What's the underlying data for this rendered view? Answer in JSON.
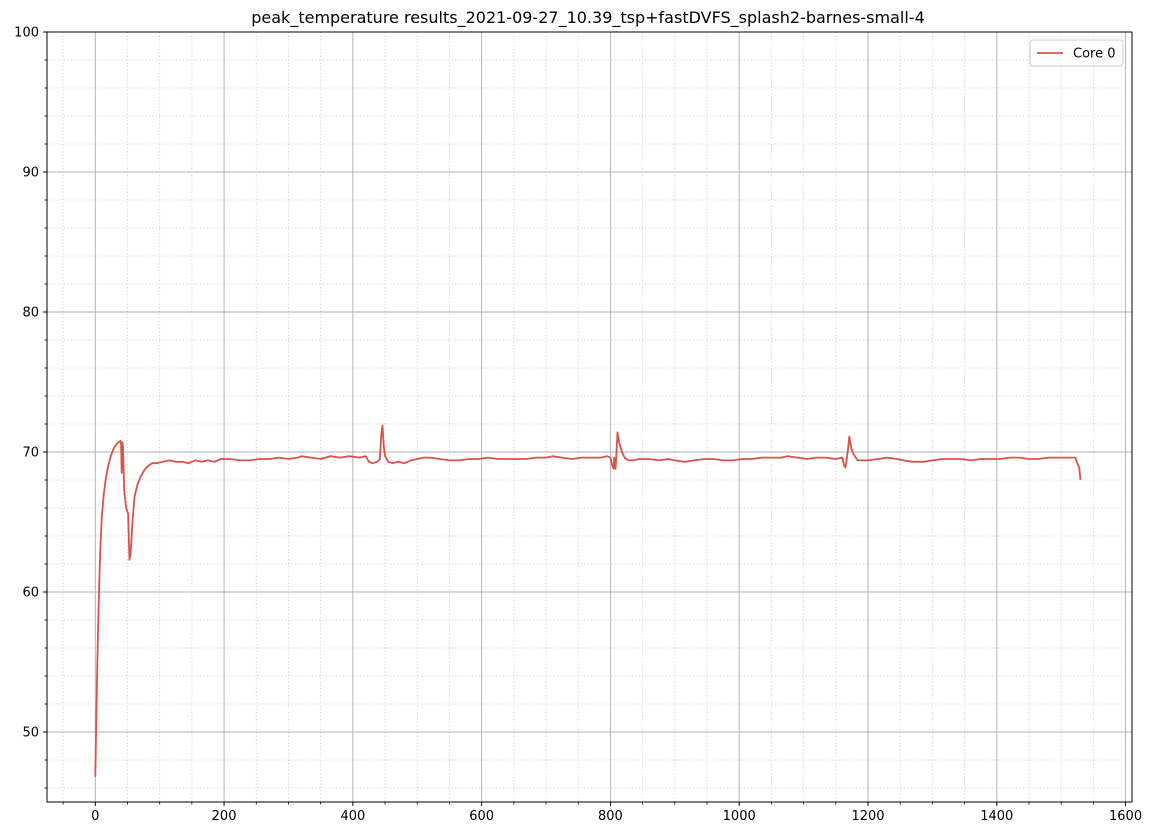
{
  "chart_data": {
    "type": "line",
    "title": "peak_temperature results_2021-09-27_10.39_tsp+fastDVFS_splash2-barnes-small-4",
    "xlabel": "",
    "ylabel": "",
    "xlim": [
      -75,
      1610
    ],
    "ylim": [
      45,
      100
    ],
    "x_major_ticks": [
      0,
      200,
      400,
      600,
      800,
      1000,
      1200,
      1400,
      1600
    ],
    "x_minor_step": 50,
    "y_major_ticks": [
      50,
      60,
      70,
      80,
      90,
      100
    ],
    "y_minor_step": 2,
    "grid": {
      "major": true,
      "minor": true
    },
    "legend": {
      "position": "upper right"
    },
    "series": [
      {
        "name": "Core 0",
        "color": "#d9534a",
        "points": [
          [
            0,
            46.8
          ],
          [
            2,
            52.0
          ],
          [
            4,
            56.8
          ],
          [
            6,
            60.5
          ],
          [
            8,
            63.3
          ],
          [
            10,
            65.3
          ],
          [
            13,
            66.9
          ],
          [
            16,
            68.0
          ],
          [
            20,
            69.0
          ],
          [
            24,
            69.7
          ],
          [
            28,
            70.2
          ],
          [
            32,
            70.5
          ],
          [
            36,
            70.7
          ],
          [
            39,
            70.8
          ],
          [
            40,
            70.6
          ],
          [
            41,
            68.5
          ],
          [
            42,
            70.7
          ],
          [
            43,
            70.4
          ],
          [
            45,
            67.2
          ],
          [
            48,
            66.0
          ],
          [
            51,
            65.6
          ],
          [
            53,
            62.3
          ],
          [
            55,
            62.8
          ],
          [
            58,
            65.2
          ],
          [
            61,
            66.8
          ],
          [
            65,
            67.6
          ],
          [
            70,
            68.2
          ],
          [
            76,
            68.7
          ],
          [
            82,
            69.0
          ],
          [
            88,
            69.2
          ],
          [
            95,
            69.2
          ],
          [
            105,
            69.3
          ],
          [
            115,
            69.4
          ],
          [
            125,
            69.3
          ],
          [
            135,
            69.3
          ],
          [
            145,
            69.2
          ],
          [
            155,
            69.4
          ],
          [
            165,
            69.3
          ],
          [
            175,
            69.4
          ],
          [
            185,
            69.3
          ],
          [
            195,
            69.5
          ],
          [
            210,
            69.5
          ],
          [
            225,
            69.4
          ],
          [
            240,
            69.4
          ],
          [
            255,
            69.5
          ],
          [
            270,
            69.5
          ],
          [
            285,
            69.6
          ],
          [
            300,
            69.5
          ],
          [
            315,
            69.6
          ],
          [
            320,
            69.7
          ],
          [
            335,
            69.6
          ],
          [
            350,
            69.5
          ],
          [
            365,
            69.7
          ],
          [
            380,
            69.6
          ],
          [
            395,
            69.7
          ],
          [
            410,
            69.6
          ],
          [
            420,
            69.7
          ],
          [
            425,
            69.3
          ],
          [
            430,
            69.2
          ],
          [
            438,
            69.3
          ],
          [
            442,
            69.5
          ],
          [
            444,
            71.2
          ],
          [
            446,
            71.9
          ],
          [
            448,
            70.4
          ],
          [
            450,
            69.7
          ],
          [
            455,
            69.3
          ],
          [
            462,
            69.2
          ],
          [
            470,
            69.3
          ],
          [
            480,
            69.2
          ],
          [
            490,
            69.4
          ],
          [
            500,
            69.5
          ],
          [
            510,
            69.6
          ],
          [
            520,
            69.6
          ],
          [
            535,
            69.5
          ],
          [
            550,
            69.4
          ],
          [
            565,
            69.4
          ],
          [
            580,
            69.5
          ],
          [
            595,
            69.5
          ],
          [
            610,
            69.6
          ],
          [
            625,
            69.5
          ],
          [
            640,
            69.5
          ],
          [
            655,
            69.5
          ],
          [
            670,
            69.5
          ],
          [
            685,
            69.6
          ],
          [
            700,
            69.6
          ],
          [
            710,
            69.7
          ],
          [
            725,
            69.6
          ],
          [
            740,
            69.5
          ],
          [
            755,
            69.6
          ],
          [
            770,
            69.6
          ],
          [
            785,
            69.6
          ],
          [
            795,
            69.7
          ],
          [
            800,
            69.6
          ],
          [
            803,
            69.0
          ],
          [
            805,
            68.8
          ],
          [
            806,
            69.6
          ],
          [
            808,
            68.8
          ],
          [
            811,
            71.4
          ],
          [
            814,
            70.6
          ],
          [
            818,
            70.0
          ],
          [
            822,
            69.6
          ],
          [
            828,
            69.4
          ],
          [
            835,
            69.4
          ],
          [
            845,
            69.5
          ],
          [
            860,
            69.5
          ],
          [
            875,
            69.4
          ],
          [
            890,
            69.5
          ],
          [
            900,
            69.4
          ],
          [
            915,
            69.3
          ],
          [
            930,
            69.4
          ],
          [
            945,
            69.5
          ],
          [
            960,
            69.5
          ],
          [
            975,
            69.4
          ],
          [
            990,
            69.4
          ],
          [
            1005,
            69.5
          ],
          [
            1020,
            69.5
          ],
          [
            1035,
            69.6
          ],
          [
            1050,
            69.6
          ],
          [
            1065,
            69.6
          ],
          [
            1075,
            69.7
          ],
          [
            1090,
            69.6
          ],
          [
            1105,
            69.5
          ],
          [
            1120,
            69.6
          ],
          [
            1135,
            69.6
          ],
          [
            1150,
            69.5
          ],
          [
            1160,
            69.6
          ],
          [
            1163,
            69.0
          ],
          [
            1165,
            68.9
          ],
          [
            1167,
            69.5
          ],
          [
            1169,
            70.2
          ],
          [
            1171,
            71.1
          ],
          [
            1174,
            70.3
          ],
          [
            1178,
            69.8
          ],
          [
            1184,
            69.4
          ],
          [
            1192,
            69.4
          ],
          [
            1200,
            69.4
          ],
          [
            1215,
            69.5
          ],
          [
            1230,
            69.6
          ],
          [
            1245,
            69.5
          ],
          [
            1255,
            69.4
          ],
          [
            1270,
            69.3
          ],
          [
            1285,
            69.3
          ],
          [
            1300,
            69.4
          ],
          [
            1315,
            69.5
          ],
          [
            1330,
            69.5
          ],
          [
            1345,
            69.5
          ],
          [
            1360,
            69.4
          ],
          [
            1375,
            69.5
          ],
          [
            1390,
            69.5
          ],
          [
            1405,
            69.5
          ],
          [
            1420,
            69.6
          ],
          [
            1435,
            69.6
          ],
          [
            1450,
            69.5
          ],
          [
            1465,
            69.5
          ],
          [
            1480,
            69.6
          ],
          [
            1495,
            69.6
          ],
          [
            1510,
            69.6
          ],
          [
            1522,
            69.6
          ],
          [
            1525,
            69.2
          ],
          [
            1528,
            68.9
          ],
          [
            1530,
            68.0
          ]
        ]
      }
    ]
  }
}
